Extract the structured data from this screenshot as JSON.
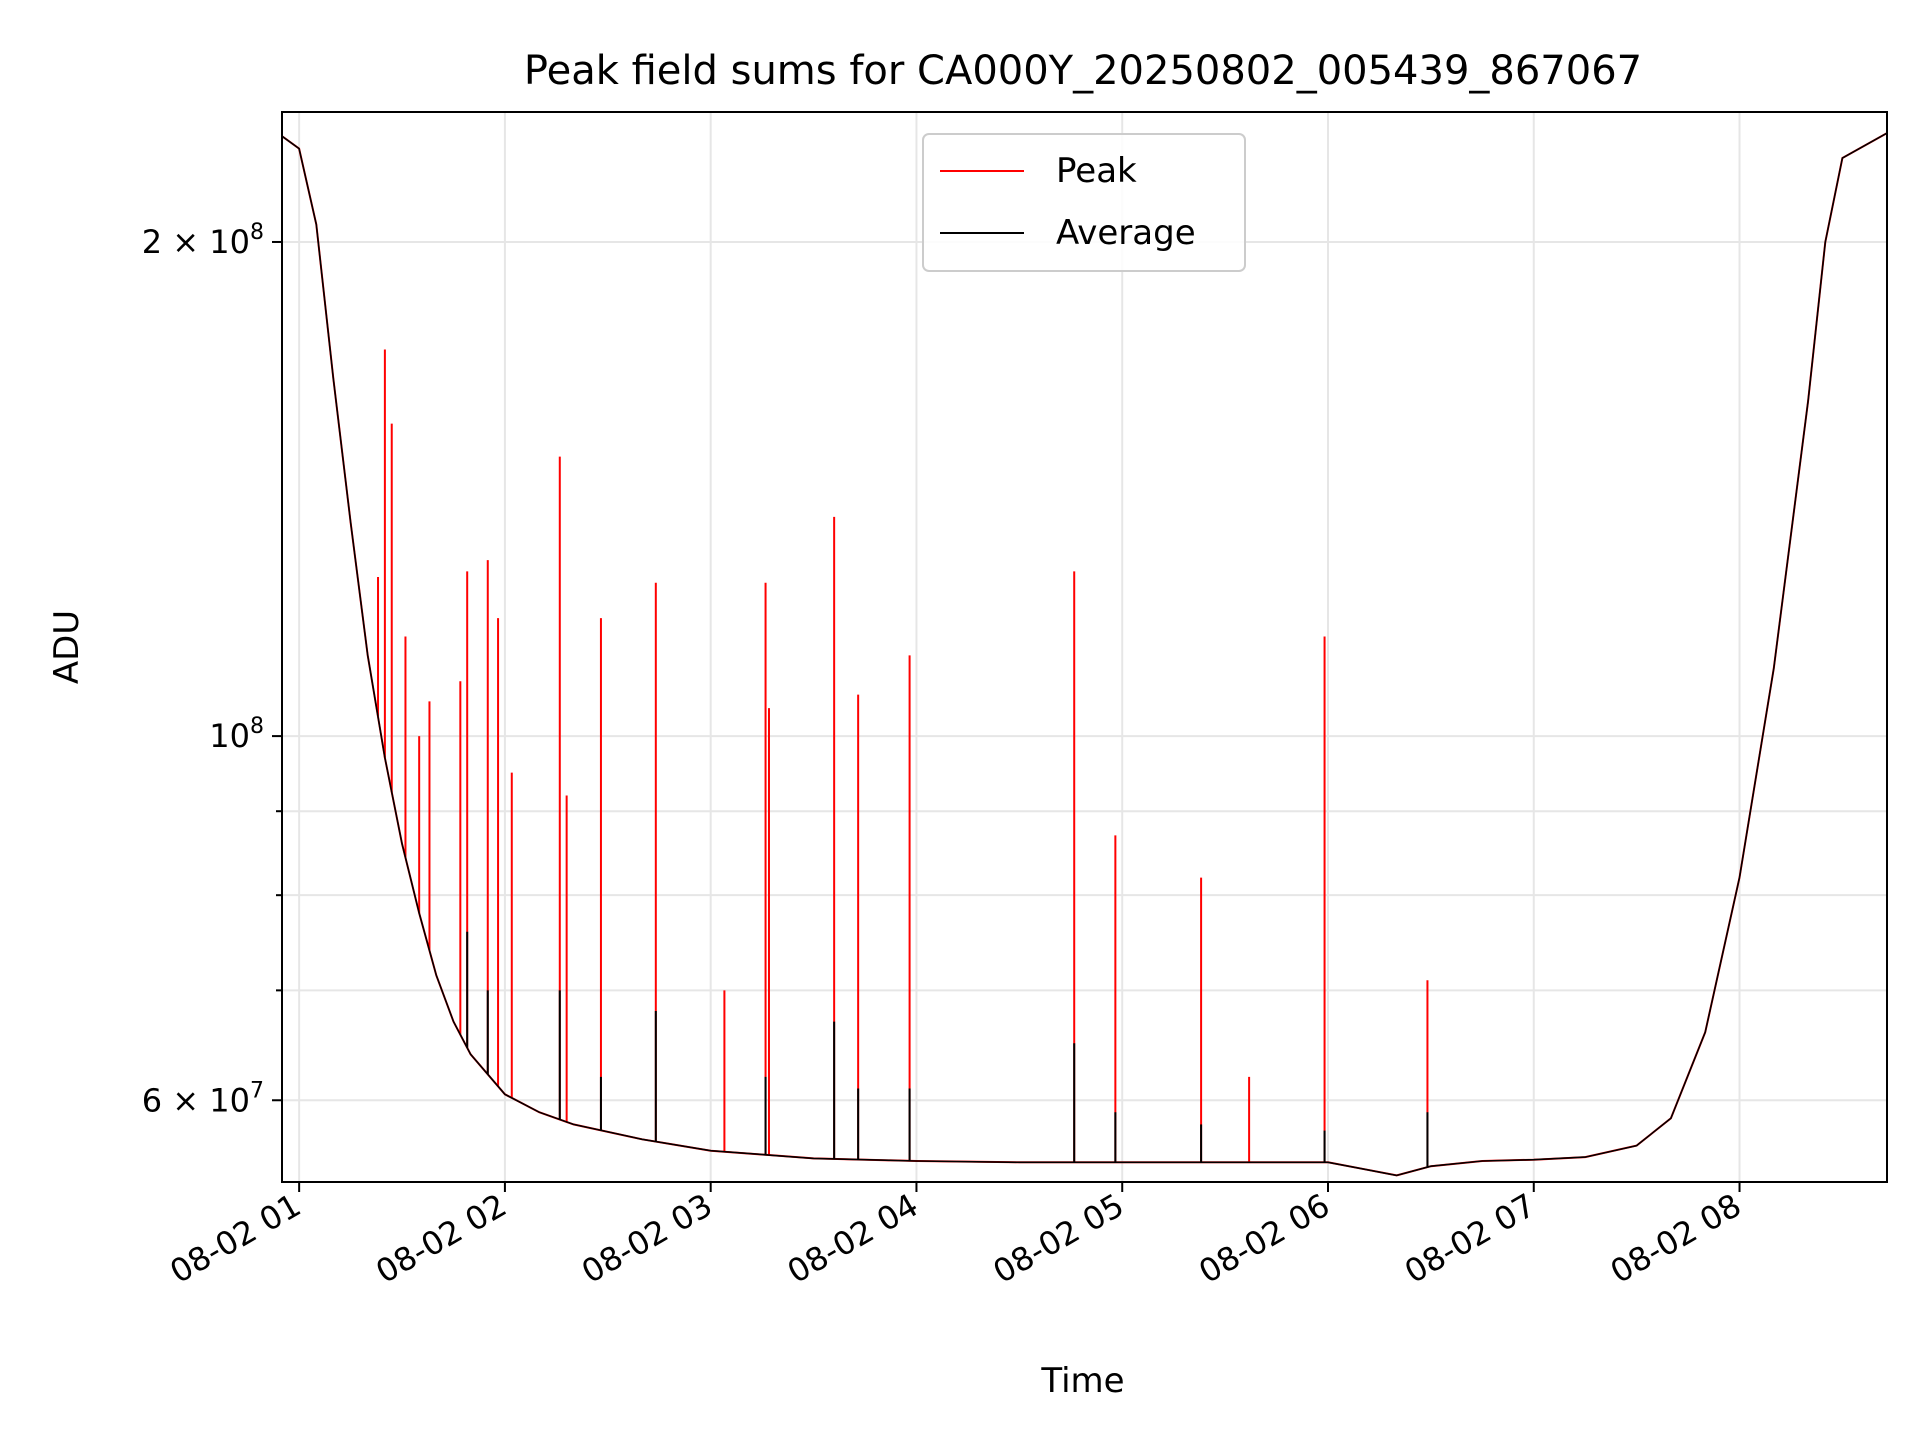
{
  "chart_data": {
    "type": "line",
    "title": "Peak field sums for CA000Y_20250802_005439_867067",
    "xlabel": "Time",
    "ylabel": "ADU",
    "yscale": "log",
    "ylim": [
      53500000,
      240000000
    ],
    "xlim": [
      "2025-08-02 00:55",
      "2025-08-02 08:43"
    ],
    "grid": true,
    "legend_position": "upper center",
    "x_tick_labels": [
      "08-02 01",
      "08-02 02",
      "08-02 03",
      "08-02 04",
      "08-02 05",
      "08-02 06",
      "08-02 07",
      "08-02 08"
    ],
    "x_ticks": [
      "2025-08-02 01:00",
      "2025-08-02 02:00",
      "2025-08-02 03:00",
      "2025-08-02 04:00",
      "2025-08-02 05:00",
      "2025-08-02 06:00",
      "2025-08-02 07:00",
      "2025-08-02 08:00"
    ],
    "y_major_ticks": [
      {
        "value": 200000000,
        "mantissa": "2",
        "exponent": "8"
      },
      {
        "value": 100000000,
        "mantissa": "",
        "exponent": "8"
      },
      {
        "value": 60000000,
        "mantissa": "6",
        "exponent": "7"
      }
    ],
    "y_minor_ticks": [
      70000000,
      80000000,
      90000000
    ],
    "series": [
      {
        "name": "Peak",
        "color": "#ff0000",
        "baseline_points": [
          [
            "2025-08-02 00:55",
            232000000
          ],
          [
            "2025-08-02 01:00",
            228000000
          ],
          [
            "2025-08-02 01:05",
            205000000
          ],
          [
            "2025-08-02 01:10",
            165000000
          ],
          [
            "2025-08-02 01:15",
            135000000
          ],
          [
            "2025-08-02 01:20",
            112000000
          ],
          [
            "2025-08-02 01:25",
            97000000
          ],
          [
            "2025-08-02 01:30",
            86000000
          ],
          [
            "2025-08-02 01:35",
            78000000
          ],
          [
            "2025-08-02 01:40",
            71500000
          ],
          [
            "2025-08-02 01:45",
            67000000
          ],
          [
            "2025-08-02 01:50",
            64000000
          ],
          [
            "2025-08-02 02:00",
            60500000
          ],
          [
            "2025-08-02 02:10",
            59000000
          ],
          [
            "2025-08-02 02:20",
            58000000
          ],
          [
            "2025-08-02 02:40",
            56800000
          ],
          [
            "2025-08-02 03:00",
            55900000
          ],
          [
            "2025-08-02 03:30",
            55300000
          ],
          [
            "2025-08-02 04:00",
            55100000
          ],
          [
            "2025-08-02 04:30",
            55000000
          ],
          [
            "2025-08-02 05:00",
            55000000
          ],
          [
            "2025-08-02 05:30",
            55000000
          ],
          [
            "2025-08-02 06:00",
            55000000
          ],
          [
            "2025-08-02 06:10",
            54500000
          ],
          [
            "2025-08-02 06:20",
            54000000
          ],
          [
            "2025-08-02 06:30",
            54700000
          ],
          [
            "2025-08-02 06:45",
            55100000
          ],
          [
            "2025-08-02 07:00",
            55200000
          ],
          [
            "2025-08-02 07:15",
            55400000
          ],
          [
            "2025-08-02 07:30",
            56300000
          ],
          [
            "2025-08-02 07:40",
            58500000
          ],
          [
            "2025-08-02 07:50",
            66000000
          ],
          [
            "2025-08-02 08:00",
            82000000
          ],
          [
            "2025-08-02 08:10",
            110000000
          ],
          [
            "2025-08-02 08:20",
            160000000
          ],
          [
            "2025-08-02 08:25",
            200000000
          ],
          [
            "2025-08-02 08:30",
            225000000
          ],
          [
            "2025-08-02 08:43",
            233000000
          ]
        ],
        "spikes": [
          [
            "2025-08-02 01:25",
            172000000
          ],
          [
            "2025-08-02 01:27",
            155000000
          ],
          [
            "2025-08-02 01:23",
            125000000
          ],
          [
            "2025-08-02 01:31",
            115000000
          ],
          [
            "2025-08-02 01:35",
            100000000
          ],
          [
            "2025-08-02 01:38",
            105000000
          ],
          [
            "2025-08-02 01:47",
            108000000
          ],
          [
            "2025-08-02 01:49",
            126000000
          ],
          [
            "2025-08-02 01:55",
            128000000
          ],
          [
            "2025-08-02 01:58",
            118000000
          ],
          [
            "2025-08-02 02:02",
            95000000
          ],
          [
            "2025-08-02 02:16",
            148000000
          ],
          [
            "2025-08-02 02:18",
            92000000
          ],
          [
            "2025-08-02 02:28",
            118000000
          ],
          [
            "2025-08-02 02:44",
            124000000
          ],
          [
            "2025-08-02 03:04",
            70000000
          ],
          [
            "2025-08-02 03:16",
            124000000
          ],
          [
            "2025-08-02 03:17",
            104000000
          ],
          [
            "2025-08-02 03:36",
            136000000
          ],
          [
            "2025-08-02 03:43",
            106000000
          ],
          [
            "2025-08-02 03:58",
            112000000
          ],
          [
            "2025-08-02 04:46",
            126000000
          ],
          [
            "2025-08-02 04:58",
            87000000
          ],
          [
            "2025-08-02 05:23",
            82000000
          ],
          [
            "2025-08-02 05:37",
            62000000
          ],
          [
            "2025-08-02 05:59",
            115000000
          ],
          [
            "2025-08-02 06:29",
            71000000
          ]
        ]
      },
      {
        "name": "Average",
        "color": "#000000",
        "baseline_points": [
          [
            "2025-08-02 00:55",
            232000000
          ],
          [
            "2025-08-02 01:00",
            228000000
          ],
          [
            "2025-08-02 01:05",
            205000000
          ],
          [
            "2025-08-02 01:10",
            165000000
          ],
          [
            "2025-08-02 01:15",
            135000000
          ],
          [
            "2025-08-02 01:20",
            112000000
          ],
          [
            "2025-08-02 01:25",
            97000000
          ],
          [
            "2025-08-02 01:30",
            86000000
          ],
          [
            "2025-08-02 01:35",
            78000000
          ],
          [
            "2025-08-02 01:40",
            71500000
          ],
          [
            "2025-08-02 01:45",
            67000000
          ],
          [
            "2025-08-02 01:50",
            64000000
          ],
          [
            "2025-08-02 02:00",
            60500000
          ],
          [
            "2025-08-02 02:10",
            59000000
          ],
          [
            "2025-08-02 02:20",
            58000000
          ],
          [
            "2025-08-02 02:40",
            56800000
          ],
          [
            "2025-08-02 03:00",
            55900000
          ],
          [
            "2025-08-02 03:30",
            55300000
          ],
          [
            "2025-08-02 04:00",
            55100000
          ],
          [
            "2025-08-02 04:30",
            55000000
          ],
          [
            "2025-08-02 05:00",
            55000000
          ],
          [
            "2025-08-02 05:30",
            55000000
          ],
          [
            "2025-08-02 06:00",
            55000000
          ],
          [
            "2025-08-02 06:10",
            54500000
          ],
          [
            "2025-08-02 06:20",
            54000000
          ],
          [
            "2025-08-02 06:30",
            54700000
          ],
          [
            "2025-08-02 06:45",
            55100000
          ],
          [
            "2025-08-02 07:00",
            55200000
          ],
          [
            "2025-08-02 07:15",
            55400000
          ],
          [
            "2025-08-02 07:30",
            56300000
          ],
          [
            "2025-08-02 07:40",
            58500000
          ],
          [
            "2025-08-02 07:50",
            66000000
          ],
          [
            "2025-08-02 08:00",
            82000000
          ],
          [
            "2025-08-02 08:10",
            110000000
          ],
          [
            "2025-08-02 08:20",
            160000000
          ],
          [
            "2025-08-02 08:25",
            200000000
          ],
          [
            "2025-08-02 08:30",
            225000000
          ],
          [
            "2025-08-02 08:43",
            233000000
          ]
        ],
        "spikes": [
          [
            "2025-08-02 01:49",
            76000000
          ],
          [
            "2025-08-02 01:55",
            70000000
          ],
          [
            "2025-08-02 02:16",
            70000000
          ],
          [
            "2025-08-02 02:28",
            62000000
          ],
          [
            "2025-08-02 02:44",
            68000000
          ],
          [
            "2025-08-02 03:16",
            62000000
          ],
          [
            "2025-08-02 03:36",
            67000000
          ],
          [
            "2025-08-02 03:43",
            61000000
          ],
          [
            "2025-08-02 03:58",
            61000000
          ],
          [
            "2025-08-02 04:46",
            65000000
          ],
          [
            "2025-08-02 04:58",
            59000000
          ],
          [
            "2025-08-02 05:23",
            58000000
          ],
          [
            "2025-08-02 05:59",
            57500000
          ],
          [
            "2025-08-02 06:29",
            59000000
          ]
        ]
      }
    ]
  }
}
